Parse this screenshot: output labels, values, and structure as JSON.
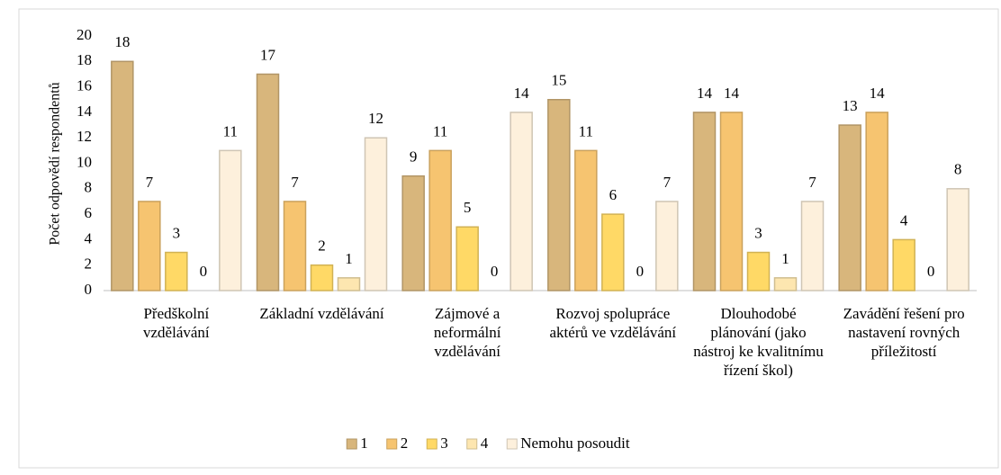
{
  "chart_data": {
    "type": "bar",
    "y_label": "Počet odpovědí respondentů",
    "categories": [
      "Předškolní vzdělávání",
      "Základní vzdělávání",
      "Zájmové a neformální vzdělávání",
      "Rozvoj spolupráce aktérů ve vzdělávání",
      "Dlouhodobé plánování (jako nástroj ke kvalitnímu řízení škol)",
      "Zavádění řešení pro nastavení rovných příležitostí"
    ],
    "series": [
      {
        "name": "1",
        "color": "#d8b67c",
        "values": [
          18,
          17,
          9,
          15,
          14,
          13
        ]
      },
      {
        "name": "2",
        "color": "#f6c470",
        "values": [
          7,
          7,
          11,
          11,
          14,
          14
        ]
      },
      {
        "name": "3",
        "color": "#ffd966",
        "values": [
          3,
          2,
          5,
          6,
          3,
          4
        ]
      },
      {
        "name": "4",
        "color": "#fde6b0",
        "values": [
          0,
          1,
          0,
          0,
          1,
          0
        ]
      },
      {
        "name": "Nemohu posoudit",
        "color": "#fdf0dc",
        "values": [
          11,
          12,
          14,
          7,
          7,
          8
        ]
      }
    ],
    "ylim": [
      0,
      20
    ],
    "yticks": [
      0,
      2,
      4,
      6,
      8,
      10,
      12,
      14,
      16,
      18,
      20
    ],
    "grid": false,
    "legend": "bottom"
  }
}
